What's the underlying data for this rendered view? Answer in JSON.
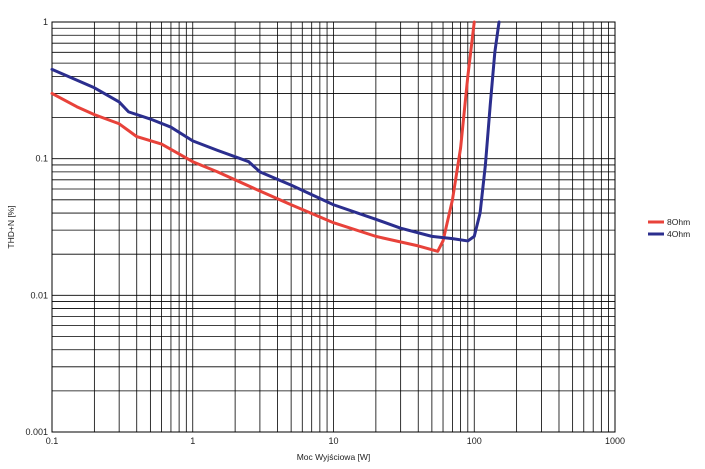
{
  "chart_data": {
    "type": "line",
    "x_scale": "log",
    "y_scale": "log",
    "xlabel": "Moc Wyjściowa [W]",
    "ylabel": "THD+N [%]",
    "xlim": [
      0.1,
      1000
    ],
    "ylim": [
      0.001,
      1
    ],
    "x_ticks": [
      "0.1",
      "1",
      "10",
      "100",
      "1000"
    ],
    "y_ticks": [
      "0.001",
      "0.01",
      "0.1",
      "1"
    ],
    "grid": true,
    "legend_position": "right",
    "series": [
      {
        "name": "8Ohm",
        "color": "#e8423a",
        "x": [
          0.1,
          0.15,
          0.2,
          0.3,
          0.4,
          0.6,
          1.0,
          1.5,
          3,
          5,
          10,
          20,
          40,
          55,
          60,
          70,
          80,
          90,
          100
        ],
        "y": [
          0.3,
          0.24,
          0.21,
          0.18,
          0.145,
          0.128,
          0.095,
          0.08,
          0.058,
          0.046,
          0.034,
          0.027,
          0.023,
          0.021,
          0.025,
          0.05,
          0.12,
          0.4,
          1.0
        ]
      },
      {
        "name": "4Ohm",
        "color": "#2b2e8e",
        "x": [
          0.1,
          0.2,
          0.3,
          0.35,
          0.5,
          0.7,
          1.0,
          1.5,
          2.5,
          3,
          5,
          10,
          20,
          30,
          50,
          70,
          90,
          100,
          110,
          120,
          130,
          140,
          150
        ],
        "y": [
          0.45,
          0.33,
          0.26,
          0.22,
          0.195,
          0.17,
          0.135,
          0.115,
          0.095,
          0.08,
          0.064,
          0.046,
          0.036,
          0.031,
          0.027,
          0.026,
          0.025,
          0.027,
          0.04,
          0.09,
          0.25,
          0.6,
          1.0
        ]
      }
    ]
  }
}
